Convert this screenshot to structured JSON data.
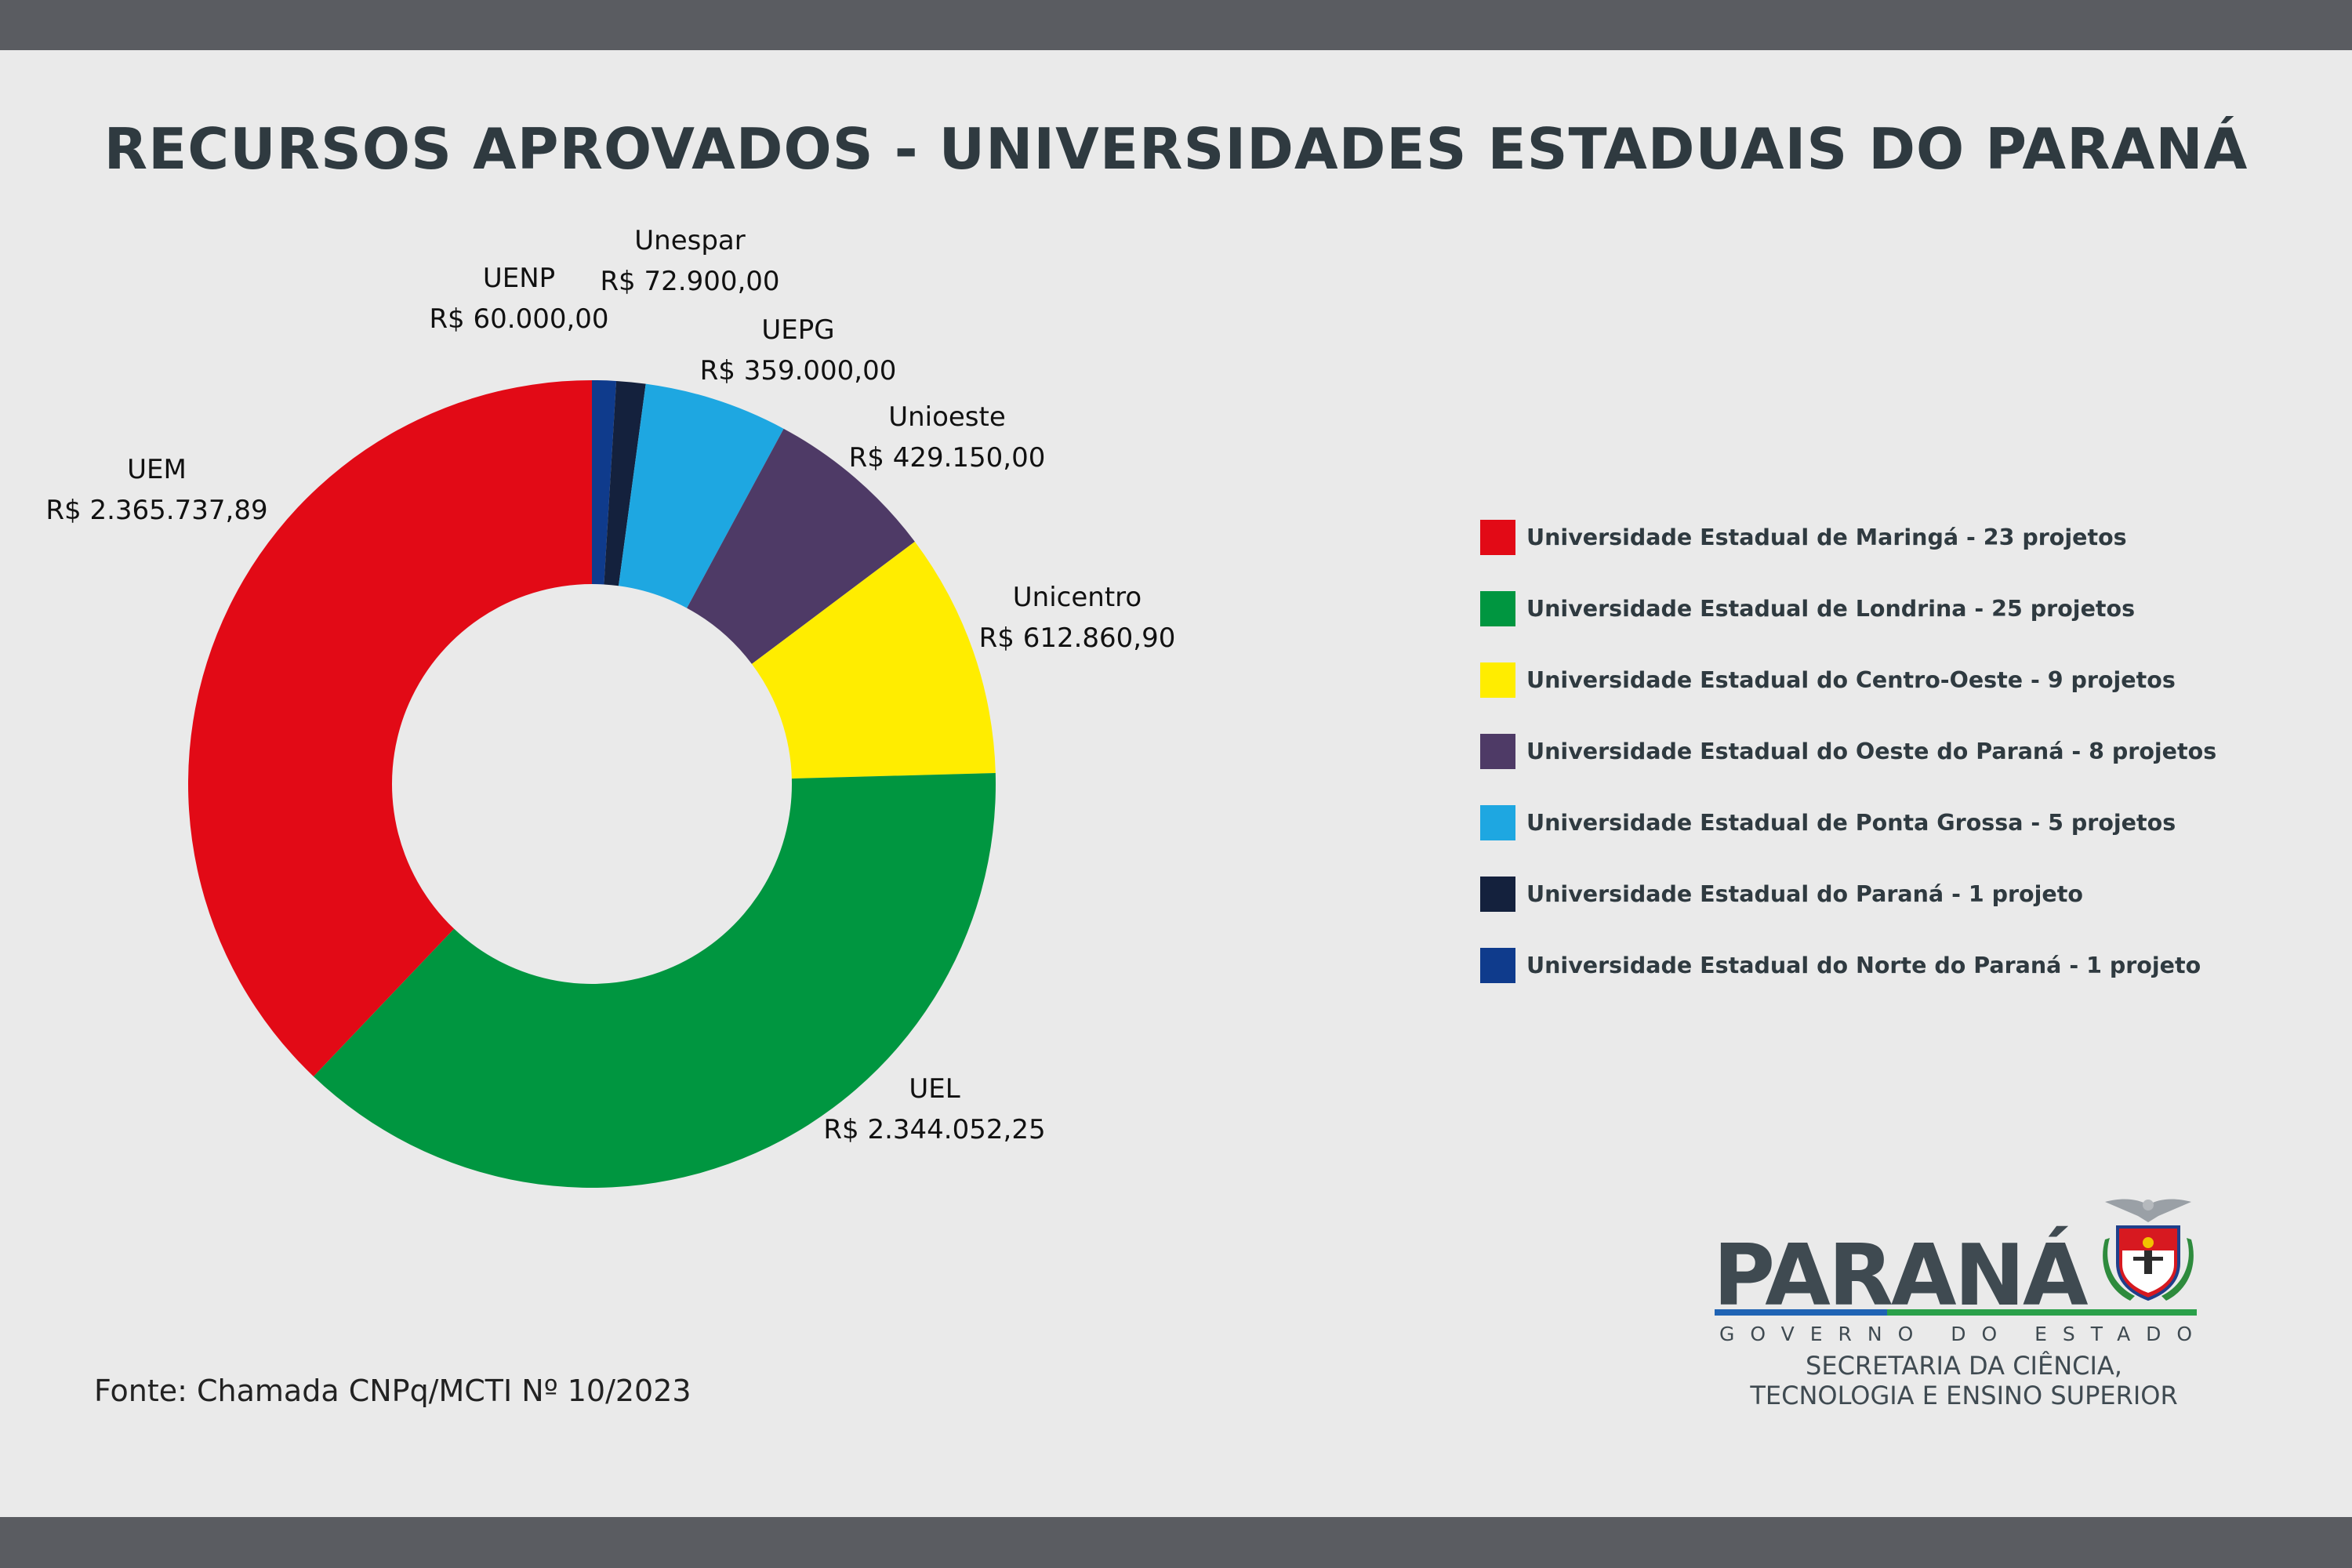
{
  "title": "RECURSOS APROVADOS - UNIVERSIDADES ESTADUAIS DO PARANÁ",
  "chart_data": {
    "type": "pie",
    "subtype": "donut",
    "title": "RECURSOS APROVADOS - UNIVERSIDADES ESTADUAIS DO PARANÁ",
    "slices": [
      {
        "id": "uenp",
        "label": "UENP",
        "value_text": "R$ 60.000,00",
        "value": 60000.0,
        "color": "#0f3b8c"
      },
      {
        "id": "unespar",
        "label": "Unespar",
        "value_text": "R$ 72.900,00",
        "value": 72900.0,
        "color": "#14213d"
      },
      {
        "id": "uepg",
        "label": "UEPG",
        "value_text": "R$ 359.000,00",
        "value": 359000.0,
        "color": "#1ea7e1"
      },
      {
        "id": "unioeste",
        "label": "Unioeste",
        "value_text": "R$ 429.150,00",
        "value": 429150.0,
        "color": "#4e3a66"
      },
      {
        "id": "unicentro",
        "label": "Unicentro",
        "value_text": "R$ 612.860,90",
        "value": 612860.9,
        "color": "#ffed00"
      },
      {
        "id": "uel",
        "label": "UEL",
        "value_text": "R$ 2.344.052,25",
        "value": 2344052.25,
        "color": "#009640"
      },
      {
        "id": "uem",
        "label": "UEM",
        "value_text": "R$ 2.365.737,89",
        "value": 2365737.89,
        "color": "#e20a16"
      }
    ],
    "legend": [
      {
        "text": "Universidade Estadual de Maringá - 23 projetos",
        "color": "#e20a16"
      },
      {
        "text": "Universidade Estadual de Londrina - 25 projetos",
        "color": "#009640"
      },
      {
        "text": "Universidade Estadual do Centro-Oeste - 9 projetos",
        "color": "#ffed00"
      },
      {
        "text": "Universidade Estadual do Oeste do Paraná - 8 projetos",
        "color": "#4e3a66"
      },
      {
        "text": "Universidade Estadual de Ponta Grossa - 5 projetos",
        "color": "#1ea7e1"
      },
      {
        "text": "Universidade Estadual do Paraná - 1 projeto",
        "color": "#14213d"
      },
      {
        "text": "Universidade Estadual do Norte do Paraná - 1 projeto",
        "color": "#0f3b8c"
      }
    ],
    "legend_position": "right"
  },
  "source": "Fonte: Chamada CNPq/MCTI Nº 10/2023",
  "logo": {
    "wordmark": "PARANÁ",
    "subtitle": "GOVERNO DO ESTADO",
    "secretaria_line1": "SECRETARIA DA CIÊNCIA,",
    "secretaria_line2": "TECNOLOGIA E ENSINO SUPERIOR"
  },
  "colors": {
    "top_bar": "#5a5c61",
    "background": "#eaeaea",
    "title": "#2f3a40"
  }
}
